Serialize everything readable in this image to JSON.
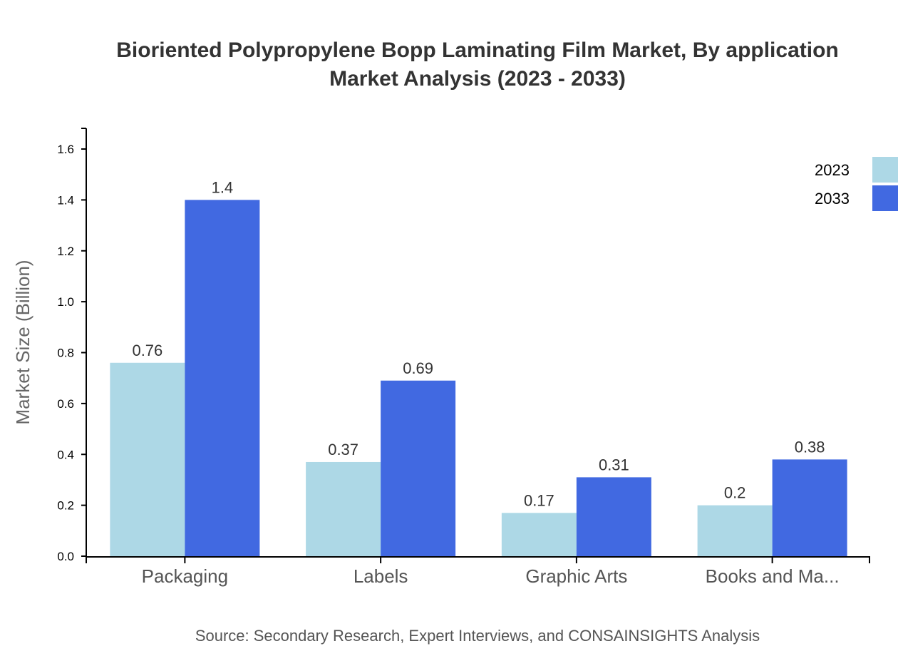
{
  "chart_data": {
    "type": "bar",
    "title": "Bioriented Polypropylene Bopp Laminating Film Market, By application Market Analysis (2023 - 2033)",
    "title_lines": [
      "Bioriented Polypropylene Bopp Laminating Film Market, By application",
      "Market Analysis (2023 - 2033)"
    ],
    "categories": [
      "Packaging",
      "Labels",
      "Graphic Arts",
      "Books and Ma..."
    ],
    "series": [
      {
        "name": "2023",
        "color": "#add8e6",
        "values": [
          0.76,
          0.37,
          0.17,
          0.2
        ]
      },
      {
        "name": "2033",
        "color": "#4169e1",
        "values": [
          1.4,
          0.69,
          0.31,
          0.38
        ]
      }
    ],
    "value_labels": {
      "2023": [
        "0.76",
        "0.37",
        "0.17",
        "0.2"
      ],
      "2033": [
        "1.4",
        "0.69",
        "0.31",
        "0.38"
      ]
    },
    "xlabel": "",
    "ylabel": "Market Size (Billion)",
    "ylim": [
      0,
      1.68
    ],
    "yticks": [
      "0.0",
      "0.2",
      "0.4",
      "0.6",
      "0.8",
      "1.0",
      "1.2",
      "1.4",
      "1.6"
    ],
    "grid": false,
    "legend_position": "top-right",
    "source": "Source: Secondary Research, Expert Interviews, and CONSAINSIGHTS Analysis"
  }
}
